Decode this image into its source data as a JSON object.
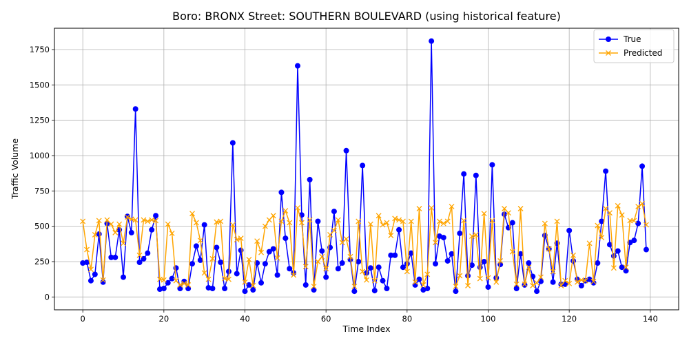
{
  "chart_data": {
    "type": "line",
    "title": "Boro: BRONX Street: SOUTHERN BOULEVARD (using historical feature)",
    "xlabel": "Time Index",
    "ylabel": "Traffic Volume",
    "xlim": [
      -7,
      147
    ],
    "ylim": [
      -91,
      1901
    ],
    "xticks": [
      0,
      20,
      40,
      60,
      80,
      100,
      120,
      140
    ],
    "yticks": [
      0,
      250,
      500,
      750,
      1000,
      1250,
      1500,
      1750
    ],
    "grid": true,
    "legend_position": "top-right",
    "series": [
      {
        "name": "True",
        "color": "#0000ff",
        "marker": "circle",
        "values": [
          240,
          245,
          115,
          160,
          445,
          105,
          520,
          280,
          280,
          475,
          140,
          570,
          455,
          1330,
          245,
          270,
          310,
          475,
          575,
          55,
          60,
          100,
          130,
          205,
          60,
          110,
          60,
          235,
          360,
          260,
          510,
          65,
          60,
          350,
          245,
          60,
          180,
          1090,
          165,
          330,
          40,
          85,
          50,
          240,
          100,
          235,
          320,
          340,
          155,
          740,
          415,
          200,
          170,
          1635,
          580,
          85,
          830,
          50,
          535,
          325,
          140,
          350,
          605,
          200,
          240,
          1035,
          265,
          40,
          250,
          930,
          170,
          205,
          45,
          210,
          115,
          60,
          295,
          295,
          475,
          210,
          235,
          310,
          85,
          125,
          50,
          60,
          1810,
          235,
          430,
          420,
          255,
          305,
          40,
          450,
          870,
          150,
          225,
          860,
          210,
          250,
          70,
          935,
          135,
          230,
          585,
          490,
          525,
          60,
          305,
          85,
          240,
          145,
          40,
          110,
          435,
          340,
          105,
          380,
          90,
          90,
          470,
          255,
          125,
          80,
          115,
          125,
          100,
          240,
          535,
          890,
          370,
          290,
          325,
          210,
          185,
          385,
          400,
          520,
          925,
          335
        ]
      },
      {
        "name": "Predicted",
        "color": "#ffa500",
        "marker": "x",
        "values": [
          535,
          335,
          195,
          440,
          540,
          120,
          545,
          515,
          455,
          515,
          380,
          565,
          550,
          545,
          295,
          545,
          535,
          545,
          540,
          125,
          120,
          515,
          450,
          115,
          85,
          95,
          85,
          590,
          525,
          400,
          170,
          125,
          270,
          530,
          535,
          130,
          125,
          510,
          405,
          415,
          105,
          265,
          80,
          395,
          315,
          500,
          545,
          575,
          275,
          535,
          610,
          525,
          155,
          630,
          525,
          215,
          545,
          75,
          250,
          285,
          200,
          440,
          470,
          545,
          385,
          410,
          285,
          75,
          535,
          180,
          120,
          515,
          115,
          575,
          510,
          525,
          435,
          555,
          545,
          535,
          180,
          535,
          105,
          625,
          85,
          160,
          630,
          385,
          535,
          520,
          535,
          640,
          75,
          150,
          540,
          80,
          430,
          440,
          130,
          590,
          135,
          540,
          105,
          255,
          625,
          595,
          320,
          90,
          625,
          90,
          210,
          80,
          100,
          140,
          520,
          340,
          180,
          535,
          80,
          115,
          95,
          295,
          105,
          120,
          115,
          380,
          110,
          505,
          420,
          625,
          595,
          205,
          645,
          580,
          210,
          540,
          540,
          640,
          660,
          510
        ]
      }
    ]
  }
}
